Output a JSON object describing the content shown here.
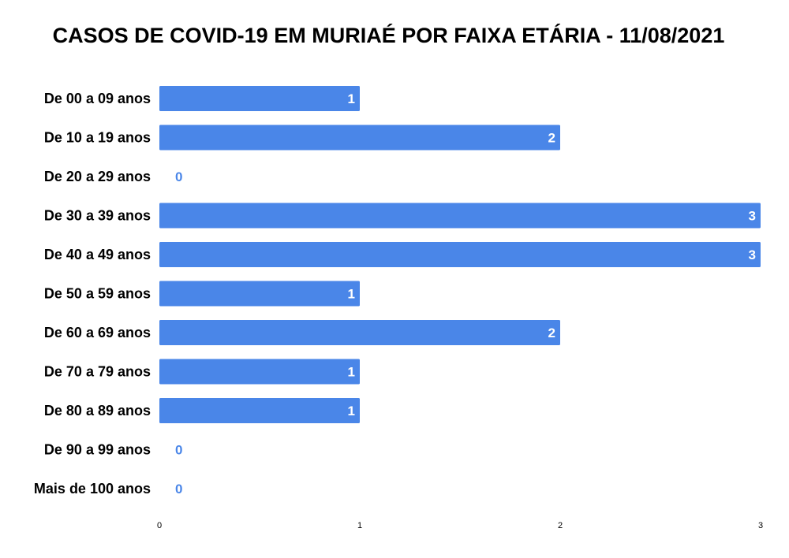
{
  "chart_data": {
    "type": "bar",
    "orientation": "horizontal",
    "title": "CASOS DE COVID-19 EM MURIAÉ POR FAIXA ETÁRIA - 11/08/2021",
    "categories": [
      "De 00 a 09 anos",
      "De 10 a 19 anos",
      "De 20 a 29 anos",
      "De 30 a 39 anos",
      "De 40 a 49 anos",
      "De 50 a 59 anos",
      "De 60 a 69 anos",
      "De 70 a 79 anos",
      "De 80 a 89 anos",
      "De 90 a 99 anos",
      "Mais de 100 anos"
    ],
    "values": [
      1,
      2,
      0,
      3,
      3,
      1,
      2,
      1,
      1,
      0,
      0
    ],
    "xlim": [
      0,
      3
    ],
    "xticks": [
      "0",
      "1",
      "2",
      "3"
    ],
    "xlabel": "",
    "ylabel": "",
    "grid": false,
    "legend": "none",
    "bar_color": "#4a86e8",
    "inside_label_color": "#ffffff",
    "outside_label_color": "#4a86e8"
  }
}
